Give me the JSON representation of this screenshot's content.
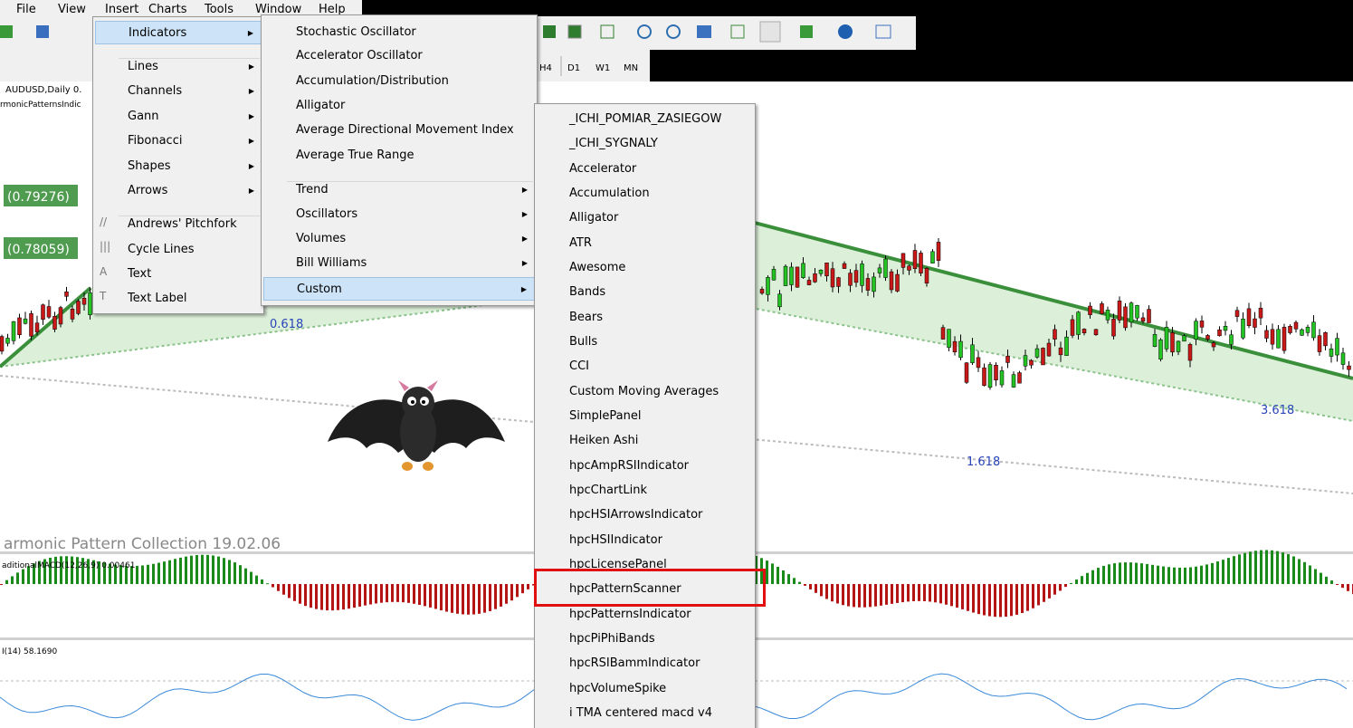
{
  "menubar": [
    "File",
    "View",
    "Insert",
    "Charts",
    "Tools",
    "Window",
    "Help"
  ],
  "timeframes": [
    "H4",
    "D1",
    "W1",
    "MN"
  ],
  "chart": {
    "symbol": "AUDUSD,Daily  0.",
    "indicator": "rmonicPatternsIndic",
    "price_labels": [
      "(0.79276)",
      "(0.78059)"
    ],
    "fib_labels": [
      "0.618",
      "3.618",
      "1.618"
    ],
    "watermark": "armonic Pattern Collection 19.02.06",
    "macd_label": "aditionalMACD(12,26,9) 0.00461",
    "rsi_label": "I(14) 58.1690"
  },
  "insert_menu": {
    "groups": [
      [
        {
          "label": "Indicators",
          "submenu": true,
          "selected": true
        }
      ],
      [
        {
          "label": "Lines",
          "submenu": true
        },
        {
          "label": "Channels",
          "submenu": true
        },
        {
          "label": "Gann",
          "submenu": true
        },
        {
          "label": "Fibonacci",
          "submenu": true
        },
        {
          "label": "Shapes",
          "submenu": true
        },
        {
          "label": "Arrows",
          "submenu": true
        }
      ],
      [
        {
          "label": "Andrews' Pitchfork"
        },
        {
          "label": "Cycle Lines"
        },
        {
          "label": "Text"
        },
        {
          "label": "Text Label"
        }
      ]
    ]
  },
  "indicators_menu": {
    "groups": [
      [
        {
          "label": "Stochastic Oscillator"
        },
        {
          "label": "Accelerator Oscillator"
        },
        {
          "label": "Accumulation/Distribution"
        },
        {
          "label": "Alligator"
        },
        {
          "label": "Average Directional Movement Index"
        },
        {
          "label": "Average True Range"
        }
      ],
      [
        {
          "label": "Trend",
          "submenu": true
        },
        {
          "label": "Oscillators",
          "submenu": true
        },
        {
          "label": "Volumes",
          "submenu": true
        },
        {
          "label": "Bill Williams",
          "submenu": true
        },
        {
          "label": "Custom",
          "submenu": true,
          "selected": true
        }
      ]
    ]
  },
  "custom_menu": {
    "items": [
      "_ICHI_POMIAR_ZASIEGOW",
      "_ICHI_SYGNALY",
      "Accelerator",
      "Accumulation",
      "Alligator",
      "ATR",
      "Awesome",
      "Bands",
      "Bears",
      "Bulls",
      "CCI",
      "Custom Moving Averages",
      "SimplePanel",
      "Heiken Ashi",
      "hpcAmpRSIIndicator",
      "hpcChartLink",
      "hpcHSIArrowsIndicator",
      "hpcHSIIndicator",
      "hpcLicensePanel",
      "hpcPatternScanner",
      "hpcPatternsIndicator",
      "hpcPiPhiBands",
      "hpcRSIBammIndicator",
      "hpcVolumeSpike",
      "i TMA centered macd v4"
    ],
    "highlighted": "hpcPatternScanner"
  }
}
